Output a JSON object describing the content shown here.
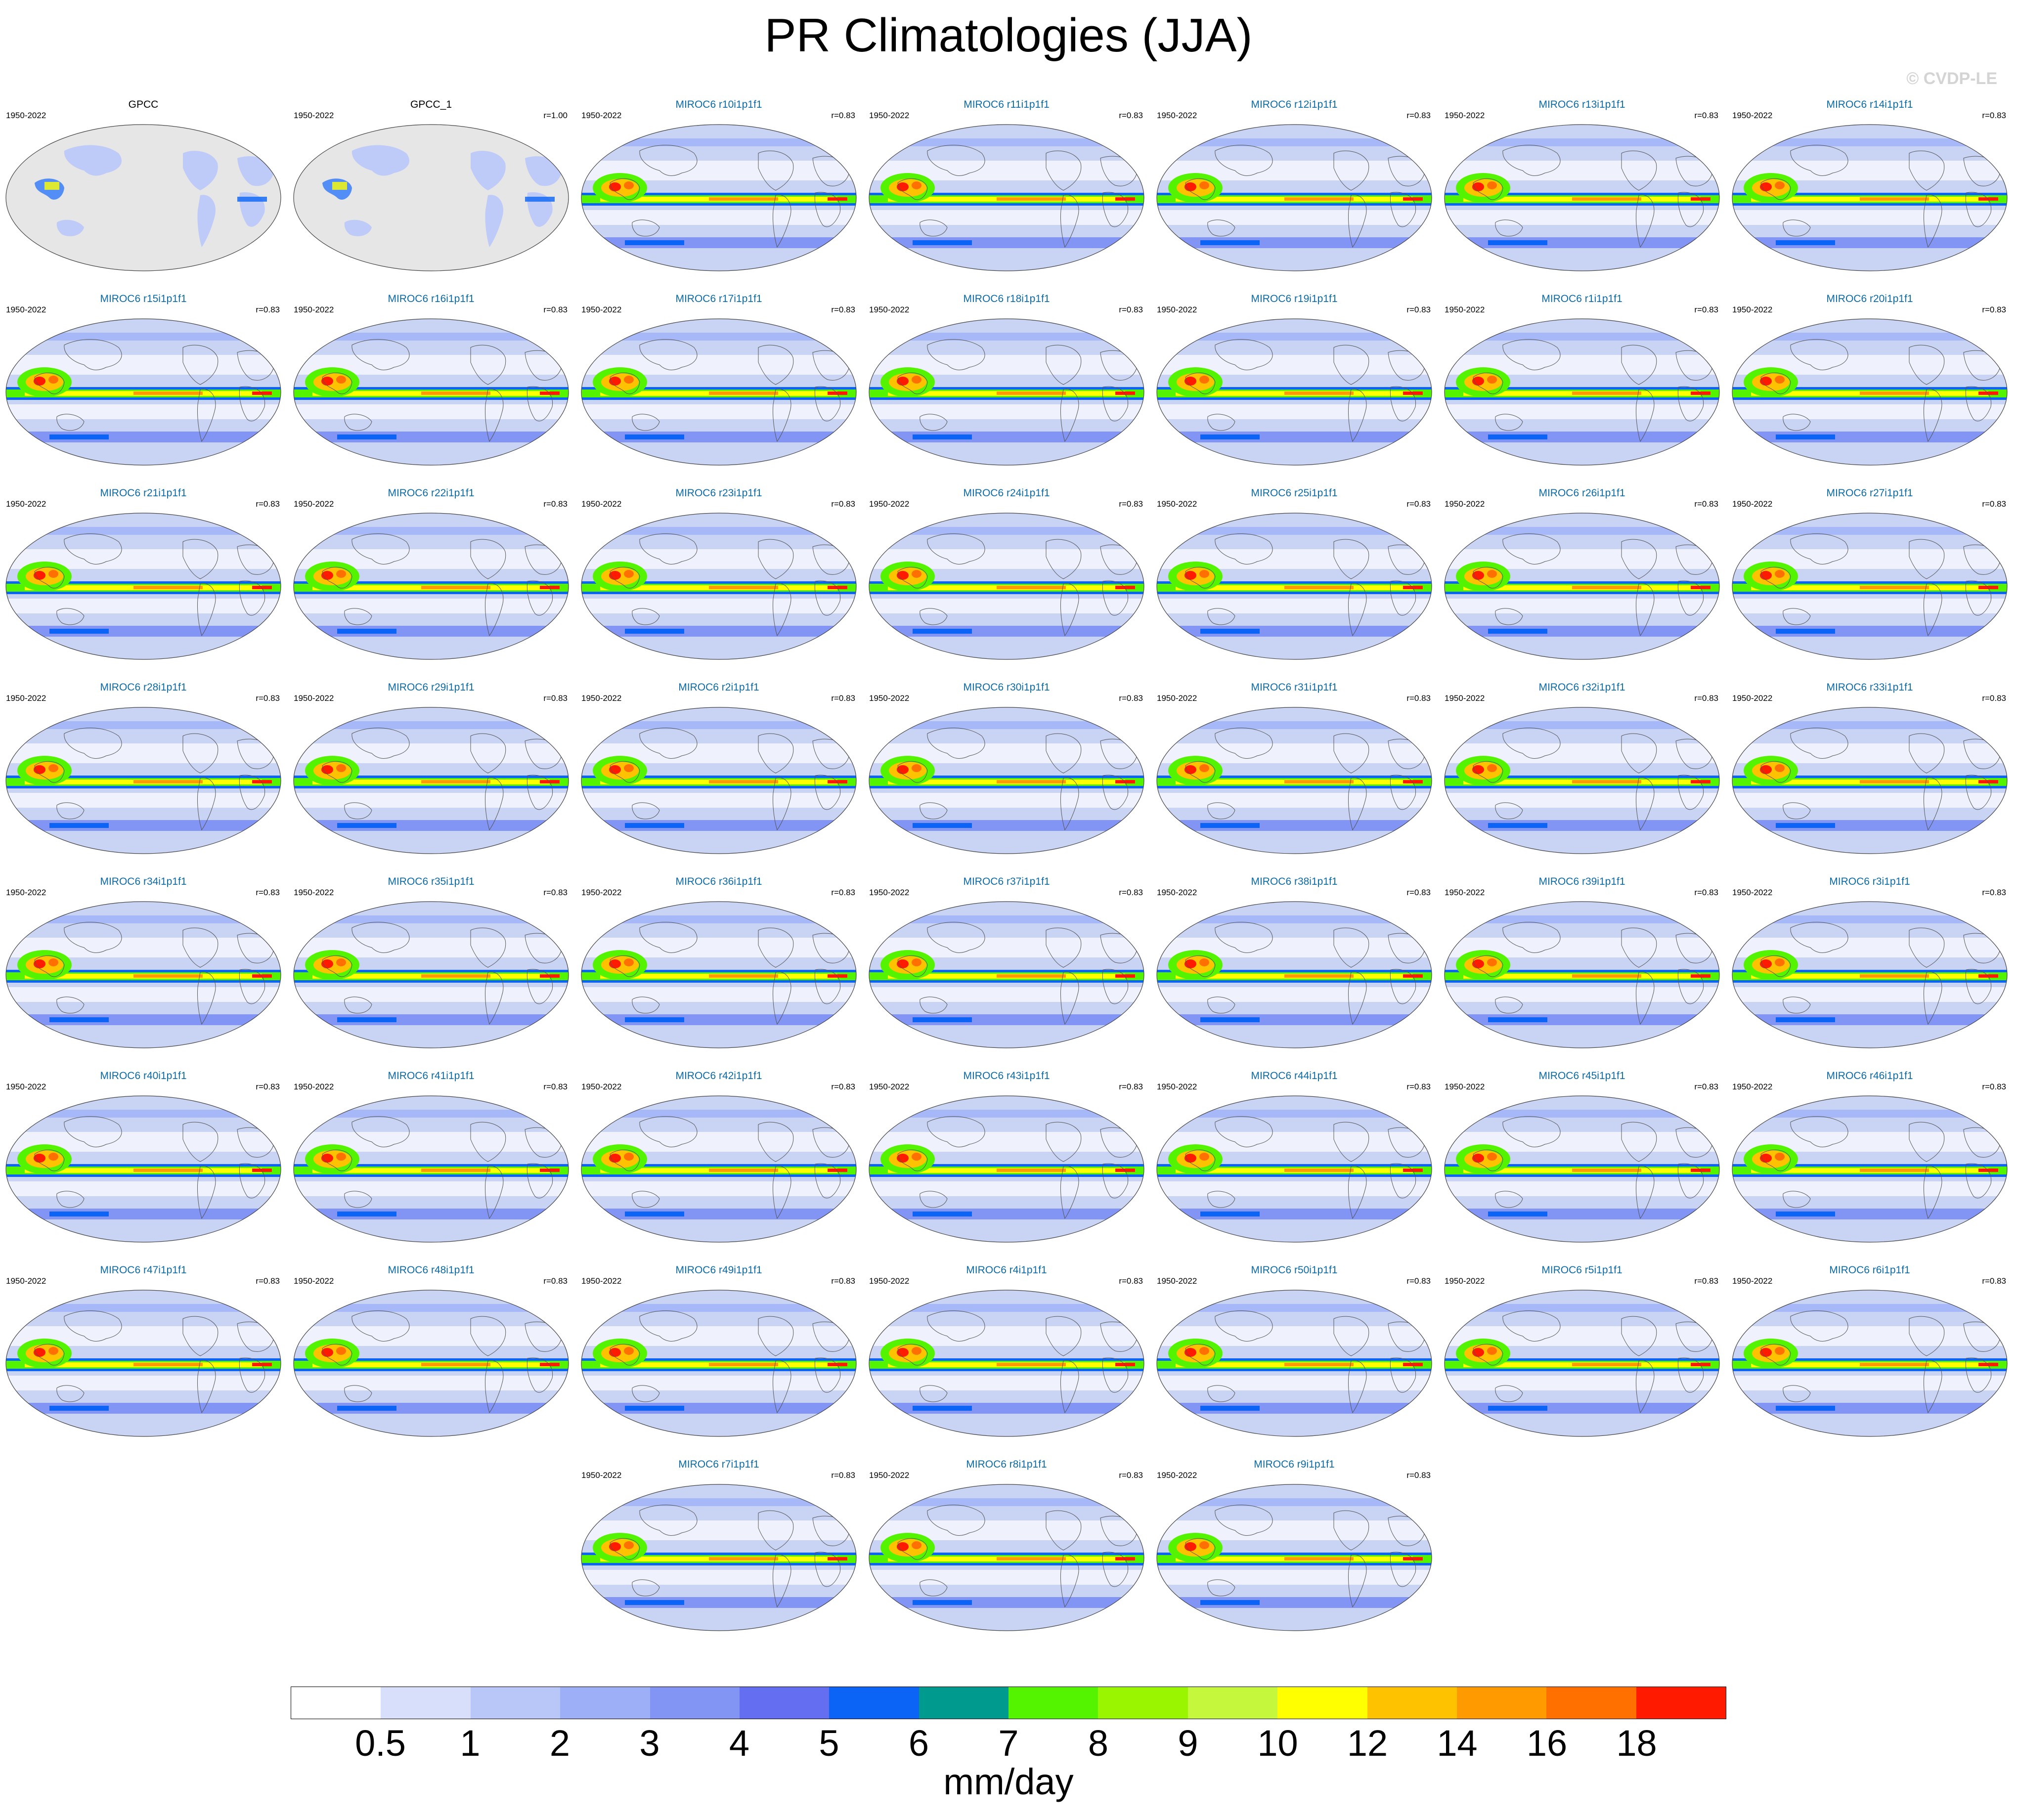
{
  "title": "PR Climatologies (JJA)",
  "watermark": "© CVDP-LE",
  "colors": {
    "land_mask": "#e6e6e6",
    "ocean_base": "#c9d4f5",
    "panel_title_model": "#0b6aa8",
    "coastline": "#555555"
  },
  "panels": [
    {
      "title": "GPCC",
      "period": "1950-2022",
      "r": "",
      "kind": "obs"
    },
    {
      "title": "GPCC_1",
      "period": "1950-2022",
      "r": "r=1.00",
      "kind": "obs"
    },
    {
      "title": "MIROC6 r10i1p1f1",
      "period": "1950-2022",
      "r": "r=0.83",
      "kind": "model"
    },
    {
      "title": "MIROC6 r11i1p1f1",
      "period": "1950-2022",
      "r": "r=0.83",
      "kind": "model"
    },
    {
      "title": "MIROC6 r12i1p1f1",
      "period": "1950-2022",
      "r": "r=0.83",
      "kind": "model"
    },
    {
      "title": "MIROC6 r13i1p1f1",
      "period": "1950-2022",
      "r": "r=0.83",
      "kind": "model"
    },
    {
      "title": "MIROC6 r14i1p1f1",
      "period": "1950-2022",
      "r": "r=0.83",
      "kind": "model"
    },
    {
      "title": "MIROC6 r15i1p1f1",
      "period": "1950-2022",
      "r": "r=0.83",
      "kind": "model"
    },
    {
      "title": "MIROC6 r16i1p1f1",
      "period": "1950-2022",
      "r": "r=0.83",
      "kind": "model"
    },
    {
      "title": "MIROC6 r17i1p1f1",
      "period": "1950-2022",
      "r": "r=0.83",
      "kind": "model"
    },
    {
      "title": "MIROC6 r18i1p1f1",
      "period": "1950-2022",
      "r": "r=0.83",
      "kind": "model"
    },
    {
      "title": "MIROC6 r19i1p1f1",
      "period": "1950-2022",
      "r": "r=0.83",
      "kind": "model"
    },
    {
      "title": "MIROC6 r1i1p1f1",
      "period": "1950-2022",
      "r": "r=0.83",
      "kind": "model"
    },
    {
      "title": "MIROC6 r20i1p1f1",
      "period": "1950-2022",
      "r": "r=0.83",
      "kind": "model"
    },
    {
      "title": "MIROC6 r21i1p1f1",
      "period": "1950-2022",
      "r": "r=0.83",
      "kind": "model"
    },
    {
      "title": "MIROC6 r22i1p1f1",
      "period": "1950-2022",
      "r": "r=0.83",
      "kind": "model"
    },
    {
      "title": "MIROC6 r23i1p1f1",
      "period": "1950-2022",
      "r": "r=0.83",
      "kind": "model"
    },
    {
      "title": "MIROC6 r24i1p1f1",
      "period": "1950-2022",
      "r": "r=0.83",
      "kind": "model"
    },
    {
      "title": "MIROC6 r25i1p1f1",
      "period": "1950-2022",
      "r": "r=0.83",
      "kind": "model"
    },
    {
      "title": "MIROC6 r26i1p1f1",
      "period": "1950-2022",
      "r": "r=0.83",
      "kind": "model"
    },
    {
      "title": "MIROC6 r27i1p1f1",
      "period": "1950-2022",
      "r": "r=0.83",
      "kind": "model"
    },
    {
      "title": "MIROC6 r28i1p1f1",
      "period": "1950-2022",
      "r": "r=0.83",
      "kind": "model"
    },
    {
      "title": "MIROC6 r29i1p1f1",
      "period": "1950-2022",
      "r": "r=0.83",
      "kind": "model"
    },
    {
      "title": "MIROC6 r2i1p1f1",
      "period": "1950-2022",
      "r": "r=0.83",
      "kind": "model"
    },
    {
      "title": "MIROC6 r30i1p1f1",
      "period": "1950-2022",
      "r": "r=0.83",
      "kind": "model"
    },
    {
      "title": "MIROC6 r31i1p1f1",
      "period": "1950-2022",
      "r": "r=0.83",
      "kind": "model"
    },
    {
      "title": "MIROC6 r32i1p1f1",
      "period": "1950-2022",
      "r": "r=0.83",
      "kind": "model"
    },
    {
      "title": "MIROC6 r33i1p1f1",
      "period": "1950-2022",
      "r": "r=0.83",
      "kind": "model"
    },
    {
      "title": "MIROC6 r34i1p1f1",
      "period": "1950-2022",
      "r": "r=0.83",
      "kind": "model"
    },
    {
      "title": "MIROC6 r35i1p1f1",
      "period": "1950-2022",
      "r": "r=0.83",
      "kind": "model"
    },
    {
      "title": "MIROC6 r36i1p1f1",
      "period": "1950-2022",
      "r": "r=0.83",
      "kind": "model"
    },
    {
      "title": "MIROC6 r37i1p1f1",
      "period": "1950-2022",
      "r": "r=0.83",
      "kind": "model"
    },
    {
      "title": "MIROC6 r38i1p1f1",
      "period": "1950-2022",
      "r": "r=0.83",
      "kind": "model"
    },
    {
      "title": "MIROC6 r39i1p1f1",
      "period": "1950-2022",
      "r": "r=0.83",
      "kind": "model"
    },
    {
      "title": "MIROC6 r3i1p1f1",
      "period": "1950-2022",
      "r": "r=0.83",
      "kind": "model"
    },
    {
      "title": "MIROC6 r40i1p1f1",
      "period": "1950-2022",
      "r": "r=0.83",
      "kind": "model"
    },
    {
      "title": "MIROC6 r41i1p1f1",
      "period": "1950-2022",
      "r": "r=0.83",
      "kind": "model"
    },
    {
      "title": "MIROC6 r42i1p1f1",
      "period": "1950-2022",
      "r": "r=0.83",
      "kind": "model"
    },
    {
      "title": "MIROC6 r43i1p1f1",
      "period": "1950-2022",
      "r": "r=0.83",
      "kind": "model"
    },
    {
      "title": "MIROC6 r44i1p1f1",
      "period": "1950-2022",
      "r": "r=0.83",
      "kind": "model"
    },
    {
      "title": "MIROC6 r45i1p1f1",
      "period": "1950-2022",
      "r": "r=0.83",
      "kind": "model"
    },
    {
      "title": "MIROC6 r46i1p1f1",
      "period": "1950-2022",
      "r": "r=0.83",
      "kind": "model"
    },
    {
      "title": "MIROC6 r47i1p1f1",
      "period": "1950-2022",
      "r": "r=0.83",
      "kind": "model"
    },
    {
      "title": "MIROC6 r48i1p1f1",
      "period": "1950-2022",
      "r": "r=0.83",
      "kind": "model"
    },
    {
      "title": "MIROC6 r49i1p1f1",
      "period": "1950-2022",
      "r": "r=0.83",
      "kind": "model"
    },
    {
      "title": "MIROC6 r4i1p1f1",
      "period": "1950-2022",
      "r": "r=0.83",
      "kind": "model"
    },
    {
      "title": "MIROC6 r50i1p1f1",
      "period": "1950-2022",
      "r": "r=0.83",
      "kind": "model"
    },
    {
      "title": "MIROC6 r5i1p1f1",
      "period": "1950-2022",
      "r": "r=0.83",
      "kind": "model"
    },
    {
      "title": "MIROC6 r6i1p1f1",
      "period": "1950-2022",
      "r": "r=0.83",
      "kind": "model"
    },
    {
      "title": "MIROC6 r7i1p1f1",
      "period": "1950-2022",
      "r": "r=0.83",
      "kind": "model"
    },
    {
      "title": "MIROC6 r8i1p1f1",
      "period": "1950-2022",
      "r": "r=0.83",
      "kind": "model"
    },
    {
      "title": "MIROC6 r9i1p1f1",
      "period": "1950-2022",
      "r": "r=0.83",
      "kind": "model"
    }
  ],
  "colorbar": {
    "units": "mm/day",
    "levels": [
      "0.5",
      "1",
      "2",
      "3",
      "4",
      "5",
      "6",
      "7",
      "8",
      "9",
      "10",
      "12",
      "14",
      "16",
      "18"
    ],
    "colors": [
      "#ffffff",
      "#d8dffa",
      "#b9c7f8",
      "#9db0f7",
      "#8295f5",
      "#636ef0",
      "#0b64f5",
      "#009b8e",
      "#54f400",
      "#99f500",
      "#c5f83c",
      "#ffff00",
      "#ffc200",
      "#ff9a00",
      "#ff7000",
      "#ff1a00"
    ]
  }
}
